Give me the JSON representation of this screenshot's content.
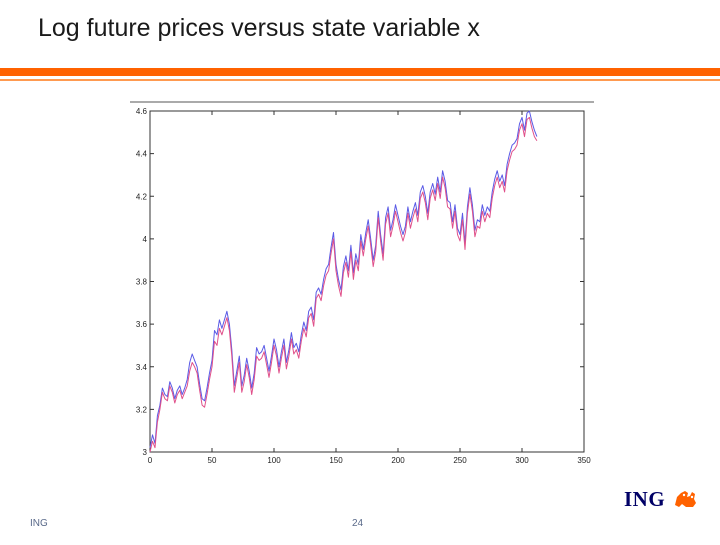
{
  "slide": {
    "title": "Log future prices versus state variable x",
    "footer_left": "ING",
    "page_number": "24",
    "logo_text": "ING",
    "accent_color": "#ff6200"
  },
  "chart_data": {
    "type": "line",
    "title": "",
    "xlabel": "",
    "ylabel": "",
    "xlim": [
      0,
      350
    ],
    "ylim": [
      3,
      4.6
    ],
    "x_ticks": [
      "0",
      "50",
      "100",
      "150",
      "200",
      "250",
      "300",
      "350"
    ],
    "y_ticks": [
      "3",
      "3.2",
      "3.4",
      "3.6",
      "3.8",
      "4",
      "4.2",
      "4.4",
      "4.6"
    ],
    "grid": false,
    "legend": "none",
    "series": [
      {
        "color": "#5a5ae6",
        "x": [
          0,
          2,
          4,
          6,
          8,
          10,
          12,
          14,
          16,
          18,
          20,
          22,
          24,
          26,
          28,
          30,
          32,
          34,
          36,
          38,
          40,
          42,
          44,
          46,
          48,
          50,
          52,
          54,
          56,
          58,
          60,
          62,
          64,
          66,
          68,
          70,
          72,
          74,
          76,
          78,
          80,
          82,
          84,
          86,
          88,
          90,
          92,
          94,
          96,
          98,
          100,
          102,
          104,
          106,
          108,
          110,
          112,
          114,
          116,
          118,
          120,
          122,
          124,
          126,
          128,
          130,
          132,
          134,
          136,
          138,
          140,
          142,
          144,
          146,
          148,
          150,
          152,
          154,
          156,
          158,
          160,
          162,
          164,
          166,
          168,
          170,
          172,
          174,
          176,
          178,
          180,
          182,
          184,
          186,
          188,
          190,
          192,
          194,
          196,
          198,
          200,
          202,
          204,
          206,
          208,
          210,
          212,
          214,
          216,
          218,
          220,
          222,
          224,
          226,
          228,
          230,
          232,
          234,
          236,
          238,
          240,
          242,
          244,
          246,
          248,
          250,
          252,
          254,
          256,
          258,
          260,
          262,
          264,
          266,
          268,
          270,
          272,
          274,
          276,
          278,
          280,
          282,
          284,
          286,
          288,
          290,
          292,
          294,
          296,
          298,
          300,
          302,
          304,
          306,
          308,
          310,
          312
        ],
        "y": [
          3.02,
          3.08,
          3.04,
          3.17,
          3.22,
          3.3,
          3.27,
          3.26,
          3.33,
          3.3,
          3.25,
          3.29,
          3.31,
          3.27,
          3.3,
          3.34,
          3.42,
          3.46,
          3.43,
          3.4,
          3.32,
          3.25,
          3.24,
          3.3,
          3.37,
          3.43,
          3.57,
          3.55,
          3.62,
          3.58,
          3.62,
          3.66,
          3.6,
          3.48,
          3.31,
          3.38,
          3.45,
          3.31,
          3.36,
          3.44,
          3.38,
          3.3,
          3.37,
          3.49,
          3.46,
          3.47,
          3.5,
          3.44,
          3.38,
          3.45,
          3.53,
          3.48,
          3.4,
          3.47,
          3.53,
          3.42,
          3.48,
          3.56,
          3.49,
          3.51,
          3.47,
          3.55,
          3.61,
          3.57,
          3.66,
          3.68,
          3.62,
          3.75,
          3.77,
          3.74,
          3.81,
          3.86,
          3.88,
          3.96,
          4.03,
          3.88,
          3.81,
          3.76,
          3.87,
          3.92,
          3.85,
          3.97,
          3.84,
          3.93,
          3.88,
          4.02,
          3.95,
          4.03,
          4.09,
          4.0,
          3.9,
          3.97,
          4.13,
          4.02,
          3.93,
          4.1,
          4.15,
          4.04,
          4.09,
          4.16,
          4.11,
          4.06,
          4.02,
          4.06,
          4.15,
          4.08,
          4.13,
          4.17,
          4.11,
          4.22,
          4.25,
          4.2,
          4.12,
          4.22,
          4.26,
          4.21,
          4.29,
          4.22,
          4.32,
          4.27,
          4.18,
          4.17,
          4.08,
          4.16,
          4.05,
          4.02,
          4.12,
          3.98,
          4.15,
          4.24,
          4.16,
          4.04,
          4.09,
          4.08,
          4.16,
          4.11,
          4.15,
          4.13,
          4.22,
          4.28,
          4.32,
          4.27,
          4.3,
          4.25,
          4.35,
          4.4,
          4.44,
          4.45,
          4.47,
          4.54,
          4.57,
          4.51,
          4.59,
          4.6,
          4.55,
          4.51,
          4.48
        ]
      },
      {
        "color": "#e0508a",
        "x": [
          0,
          2,
          4,
          6,
          8,
          10,
          12,
          14,
          16,
          18,
          20,
          22,
          24,
          26,
          28,
          30,
          32,
          34,
          36,
          38,
          40,
          42,
          44,
          46,
          48,
          50,
          52,
          54,
          56,
          58,
          60,
          62,
          64,
          66,
          68,
          70,
          72,
          74,
          76,
          78,
          80,
          82,
          84,
          86,
          88,
          90,
          92,
          94,
          96,
          98,
          100,
          102,
          104,
          106,
          108,
          110,
          112,
          114,
          116,
          118,
          120,
          122,
          124,
          126,
          128,
          130,
          132,
          134,
          136,
          138,
          140,
          142,
          144,
          146,
          148,
          150,
          152,
          154,
          156,
          158,
          160,
          162,
          164,
          166,
          168,
          170,
          172,
          174,
          176,
          178,
          180,
          182,
          184,
          186,
          188,
          190,
          192,
          194,
          196,
          198,
          200,
          202,
          204,
          206,
          208,
          210,
          212,
          214,
          216,
          218,
          220,
          222,
          224,
          226,
          228,
          230,
          232,
          234,
          236,
          238,
          240,
          242,
          244,
          246,
          248,
          250,
          252,
          254,
          256,
          258,
          260,
          262,
          264,
          266,
          268,
          270,
          272,
          274,
          276,
          278,
          280,
          282,
          284,
          286,
          288,
          290,
          292,
          294,
          296,
          298,
          300,
          302,
          304,
          306,
          308,
          310,
          312
        ],
        "y": [
          3.0,
          3.05,
          3.02,
          3.14,
          3.2,
          3.28,
          3.25,
          3.24,
          3.31,
          3.28,
          3.23,
          3.27,
          3.29,
          3.25,
          3.28,
          3.31,
          3.38,
          3.42,
          3.4,
          3.37,
          3.29,
          3.22,
          3.21,
          3.27,
          3.34,
          3.4,
          3.52,
          3.5,
          3.58,
          3.55,
          3.59,
          3.63,
          3.57,
          3.45,
          3.28,
          3.35,
          3.42,
          3.28,
          3.33,
          3.41,
          3.35,
          3.27,
          3.34,
          3.45,
          3.43,
          3.44,
          3.47,
          3.41,
          3.35,
          3.42,
          3.5,
          3.45,
          3.37,
          3.44,
          3.5,
          3.39,
          3.45,
          3.53,
          3.46,
          3.48,
          3.44,
          3.52,
          3.58,
          3.54,
          3.63,
          3.65,
          3.59,
          3.72,
          3.74,
          3.71,
          3.78,
          3.83,
          3.85,
          3.93,
          4.0,
          3.85,
          3.78,
          3.73,
          3.84,
          3.89,
          3.82,
          3.94,
          3.81,
          3.9,
          3.85,
          3.99,
          3.92,
          4.0,
          4.06,
          3.97,
          3.87,
          3.94,
          4.1,
          3.99,
          3.9,
          4.07,
          4.12,
          4.01,
          4.06,
          4.13,
          4.08,
          4.03,
          3.99,
          4.03,
          4.12,
          4.05,
          4.1,
          4.14,
          4.08,
          4.19,
          4.22,
          4.17,
          4.09,
          4.19,
          4.23,
          4.18,
          4.26,
          4.19,
          4.29,
          4.24,
          4.15,
          4.14,
          4.05,
          4.13,
          4.02,
          3.99,
          4.09,
          3.95,
          4.12,
          4.21,
          4.13,
          4.01,
          4.06,
          4.05,
          4.13,
          4.08,
          4.12,
          4.1,
          4.19,
          4.25,
          4.29,
          4.24,
          4.27,
          4.22,
          4.32,
          4.37,
          4.41,
          4.42,
          4.44,
          4.51,
          4.54,
          4.48,
          4.56,
          4.57,
          4.52,
          4.48,
          4.46
        ]
      }
    ]
  }
}
